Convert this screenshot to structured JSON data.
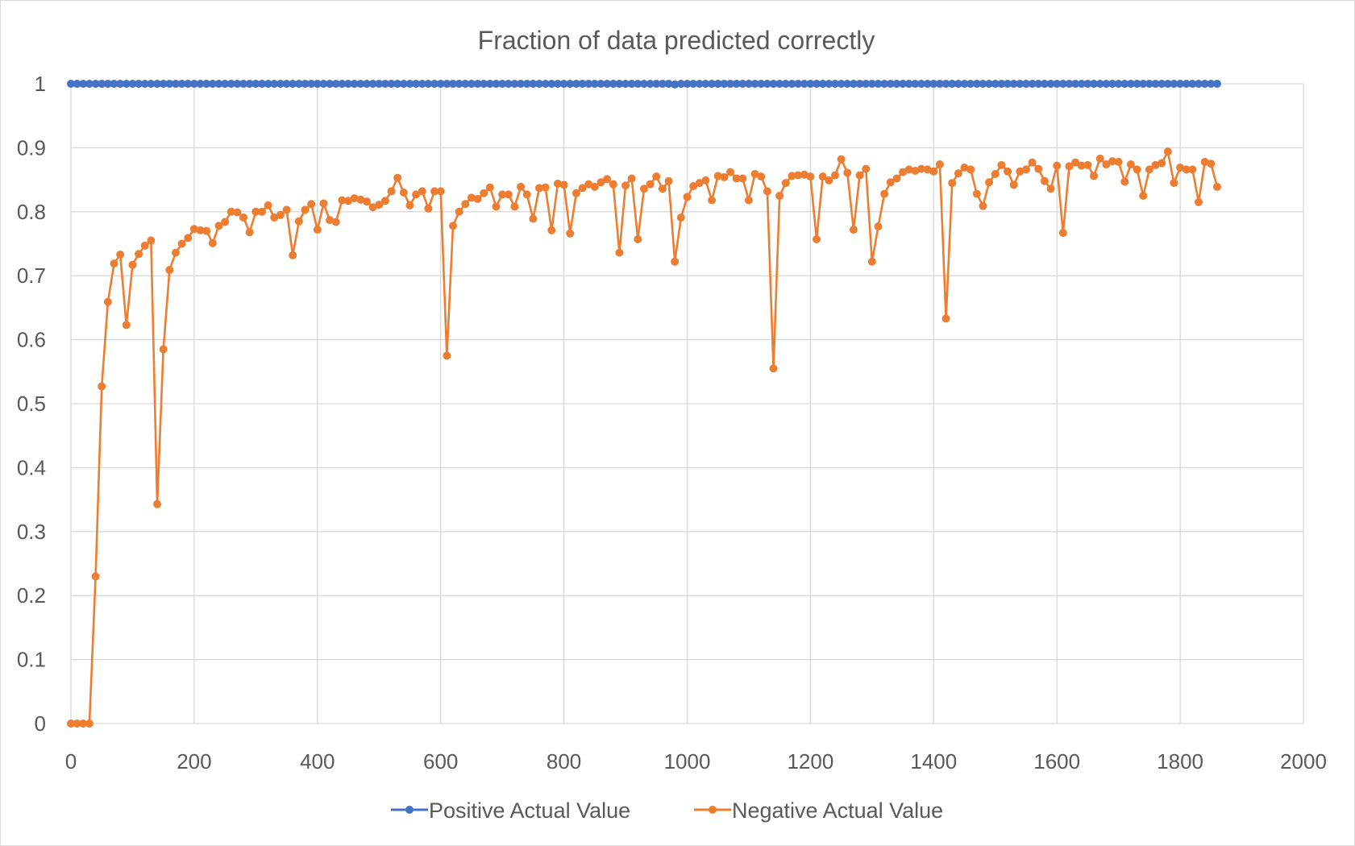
{
  "chart_data": {
    "type": "line",
    "title": "Fraction of data predicted correctly",
    "xlabel": "",
    "ylabel": "",
    "xlim": [
      0,
      2000
    ],
    "ylim": [
      0,
      1
    ],
    "x_ticks": [
      "0",
      "200",
      "400",
      "600",
      "800",
      "1000",
      "1200",
      "1400",
      "1600",
      "1800",
      "2000"
    ],
    "y_ticks": [
      "0",
      "0.1",
      "0.2",
      "0.3",
      "0.4",
      "0.5",
      "0.6",
      "0.7",
      "0.8",
      "0.9",
      "1"
    ],
    "grid": true,
    "legend_position": "bottom",
    "x": [
      0,
      10,
      20,
      30,
      40,
      50,
      60,
      70,
      80,
      90,
      100,
      110,
      120,
      130,
      140,
      150,
      160,
      170,
      180,
      190,
      200,
      210,
      220,
      230,
      240,
      250,
      260,
      270,
      280,
      290,
      300,
      310,
      320,
      330,
      340,
      350,
      360,
      370,
      380,
      390,
      400,
      410,
      420,
      430,
      440,
      450,
      460,
      470,
      480,
      490,
      500,
      510,
      520,
      530,
      540,
      550,
      560,
      570,
      580,
      590,
      600,
      610,
      620,
      630,
      640,
      650,
      660,
      670,
      680,
      690,
      700,
      710,
      720,
      730,
      740,
      750,
      760,
      770,
      780,
      790,
      800,
      810,
      820,
      830,
      840,
      850,
      860,
      870,
      880,
      890,
      900,
      910,
      920,
      930,
      940,
      950,
      960,
      970,
      980,
      990,
      1000,
      1010,
      1020,
      1030,
      1040,
      1050,
      1060,
      1070,
      1080,
      1090,
      1100,
      1110,
      1120,
      1130,
      1140,
      1150,
      1160,
      1170,
      1180,
      1190,
      1200,
      1210,
      1220,
      1230,
      1240,
      1250,
      1260,
      1270,
      1280,
      1290,
      1300,
      1310,
      1320,
      1330,
      1340,
      1350,
      1360,
      1370,
      1380,
      1390,
      1400,
      1410,
      1420,
      1430,
      1440,
      1450,
      1460,
      1470,
      1480,
      1490,
      1500,
      1510,
      1520,
      1530,
      1540,
      1550,
      1560,
      1570,
      1580,
      1590,
      1600,
      1610,
      1620,
      1630,
      1640,
      1650,
      1660,
      1670,
      1680,
      1690,
      1700,
      1710,
      1720,
      1730,
      1740,
      1750,
      1760,
      1770,
      1780,
      1790,
      1800,
      1810,
      1820,
      1830,
      1840,
      1850,
      1860
    ],
    "series": [
      {
        "name": "Positive Actual Value",
        "color": "#4472c4",
        "values": [
          1,
          1,
          1,
          1,
          1,
          1,
          1,
          1,
          1,
          1,
          1,
          1,
          1,
          1,
          1,
          1,
          1,
          1,
          1,
          1,
          1,
          1,
          1,
          1,
          1,
          1,
          1,
          1,
          1,
          1,
          1,
          1,
          1,
          1,
          1,
          1,
          1,
          1,
          1,
          1,
          1,
          1,
          1,
          1,
          1,
          1,
          1,
          1,
          1,
          1,
          1,
          1,
          1,
          1,
          1,
          1,
          1,
          1,
          1,
          1,
          1,
          1,
          1,
          1,
          1,
          1,
          1,
          1,
          1,
          1,
          1,
          1,
          1,
          1,
          1,
          1,
          1,
          1,
          1,
          1,
          1,
          1,
          1,
          1,
          1,
          1,
          1,
          1,
          1,
          1,
          1,
          1,
          1,
          1,
          1,
          1,
          1,
          1,
          0.999,
          1,
          1,
          1,
          1,
          1,
          1,
          1,
          1,
          1,
          1,
          1,
          1,
          1,
          1,
          1,
          1,
          1,
          1,
          1,
          1,
          1,
          1,
          1,
          1,
          1,
          1,
          1,
          1,
          1,
          1,
          1,
          1,
          1,
          1,
          1,
          1,
          1,
          1,
          1,
          1,
          1,
          1,
          1,
          1,
          1,
          1,
          1,
          1,
          1,
          1,
          1,
          1,
          1,
          1,
          1,
          1,
          1,
          1,
          1,
          1,
          1,
          1,
          1,
          1,
          1,
          1,
          1,
          1,
          1,
          1,
          1,
          1,
          1,
          1,
          1,
          1,
          1,
          1,
          1,
          1,
          1,
          1,
          1,
          1,
          1,
          1,
          1,
          1
        ]
      },
      {
        "name": "Negative Actual Value",
        "color": "#ed7d31",
        "values": [
          0,
          0,
          0,
          0,
          0.23,
          0.527,
          0.659,
          0.719,
          0.733,
          0.623,
          0.717,
          0.734,
          0.747,
          0.755,
          0.343,
          0.585,
          0.709,
          0.736,
          0.75,
          0.759,
          0.773,
          0.771,
          0.77,
          0.751,
          0.778,
          0.784,
          0.8,
          0.799,
          0.791,
          0.768,
          0.8,
          0.8,
          0.81,
          0.791,
          0.795,
          0.803,
          0.732,
          0.785,
          0.803,
          0.812,
          0.772,
          0.813,
          0.787,
          0.784,
          0.818,
          0.817,
          0.821,
          0.819,
          0.816,
          0.807,
          0.811,
          0.817,
          0.832,
          0.853,
          0.83,
          0.81,
          0.827,
          0.832,
          0.805,
          0.832,
          0.832,
          0.575,
          0.778,
          0.8,
          0.812,
          0.822,
          0.82,
          0.829,
          0.838,
          0.808,
          0.827,
          0.827,
          0.808,
          0.839,
          0.827,
          0.789,
          0.837,
          0.838,
          0.771,
          0.844,
          0.842,
          0.766,
          0.829,
          0.837,
          0.843,
          0.839,
          0.846,
          0.851,
          0.843,
          0.736,
          0.841,
          0.852,
          0.757,
          0.836,
          0.843,
          0.855,
          0.836,
          0.848,
          0.722,
          0.791,
          0.823,
          0.84,
          0.845,
          0.849,
          0.818,
          0.856,
          0.854,
          0.862,
          0.852,
          0.852,
          0.818,
          0.859,
          0.855,
          0.832,
          0.555,
          0.825,
          0.845,
          0.856,
          0.857,
          0.858,
          0.855,
          0.757,
          0.855,
          0.849,
          0.857,
          0.882,
          0.861,
          0.772,
          0.857,
          0.867,
          0.722,
          0.777,
          0.828,
          0.846,
          0.852,
          0.862,
          0.866,
          0.864,
          0.867,
          0.866,
          0.863,
          0.874,
          0.633,
          0.845,
          0.86,
          0.869,
          0.866,
          0.828,
          0.809,
          0.846,
          0.859,
          0.873,
          0.863,
          0.842,
          0.863,
          0.866,
          0.877,
          0.867,
          0.848,
          0.836,
          0.872,
          0.767,
          0.871,
          0.877,
          0.872,
          0.873,
          0.856,
          0.883,
          0.874,
          0.879,
          0.878,
          0.847,
          0.874,
          0.866,
          0.825,
          0.866,
          0.873,
          0.876,
          0.894,
          0.845,
          0.869,
          0.866,
          0.866,
          0.815,
          0.878,
          0.875,
          0.839
        ]
      }
    ]
  }
}
